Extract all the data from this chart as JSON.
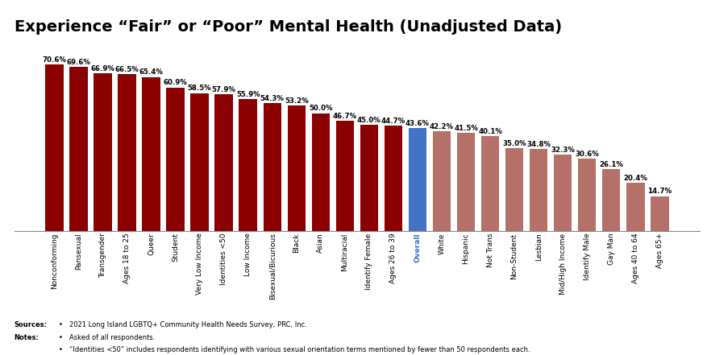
{
  "title": "Experience “Fair” or “Poor” Mental Health (Unadjusted Data)",
  "categories": [
    "Nonconforming",
    "Pansexual",
    "Transgender",
    "Ages 18 to 25",
    "Queer",
    "Student",
    "Very Low Income",
    "Identities <50",
    "Low Income",
    "Bisexual/Bicurious",
    "Black",
    "Asian",
    "Multiracial",
    "Identify Female",
    "Ages 26 to 39",
    "Overall",
    "White",
    "Hispanic",
    "Not Trans",
    "Non-Student",
    "Lesbian",
    "Mid/High Income",
    "Identify Male",
    "Gay Man",
    "Ages 40 to 64",
    "Ages 65+"
  ],
  "values": [
    70.6,
    69.6,
    66.9,
    66.5,
    65.4,
    60.9,
    58.5,
    57.9,
    55.9,
    54.3,
    53.2,
    50.0,
    46.7,
    45.0,
    44.7,
    43.6,
    42.2,
    41.5,
    40.1,
    35.0,
    34.8,
    32.3,
    30.6,
    26.1,
    20.4,
    14.7
  ],
  "bar_colors": [
    "#8B0000",
    "#8B0000",
    "#8B0000",
    "#8B0000",
    "#8B0000",
    "#8B0000",
    "#8B0000",
    "#8B0000",
    "#8B0000",
    "#8B0000",
    "#8B0000",
    "#8B0000",
    "#8B0000",
    "#8B0000",
    "#8B0000",
    "#4472C4",
    "#B5706A",
    "#B5706A",
    "#B5706A",
    "#B5706A",
    "#B5706A",
    "#B5706A",
    "#B5706A",
    "#B5706A",
    "#B5706A",
    "#B5706A"
  ],
  "value_labels": [
    "70.6%",
    "69.6%",
    "66.9%",
    "66.5%",
    "65.4%",
    "60.9%",
    "58.5%",
    "57.9%",
    "55.9%",
    "54.3%",
    "53.2%",
    "50.0%",
    "46.7%",
    "45.0%",
    "44.7%",
    "43.6%",
    "42.2%",
    "41.5%",
    "40.1%",
    "35.0%",
    "34.8%",
    "32.3%",
    "30.6%",
    "26.1%",
    "20.4%",
    "14.7%"
  ],
  "overall_index": 15,
  "overall_label_color": "#4472C4",
  "ylim": [
    0,
    80
  ],
  "background_color": "#FFFFFF",
  "label_fontsize": 6.2,
  "tick_fontsize": 6.5,
  "title_fontsize": 14,
  "footer_fontsize": 6.0
}
